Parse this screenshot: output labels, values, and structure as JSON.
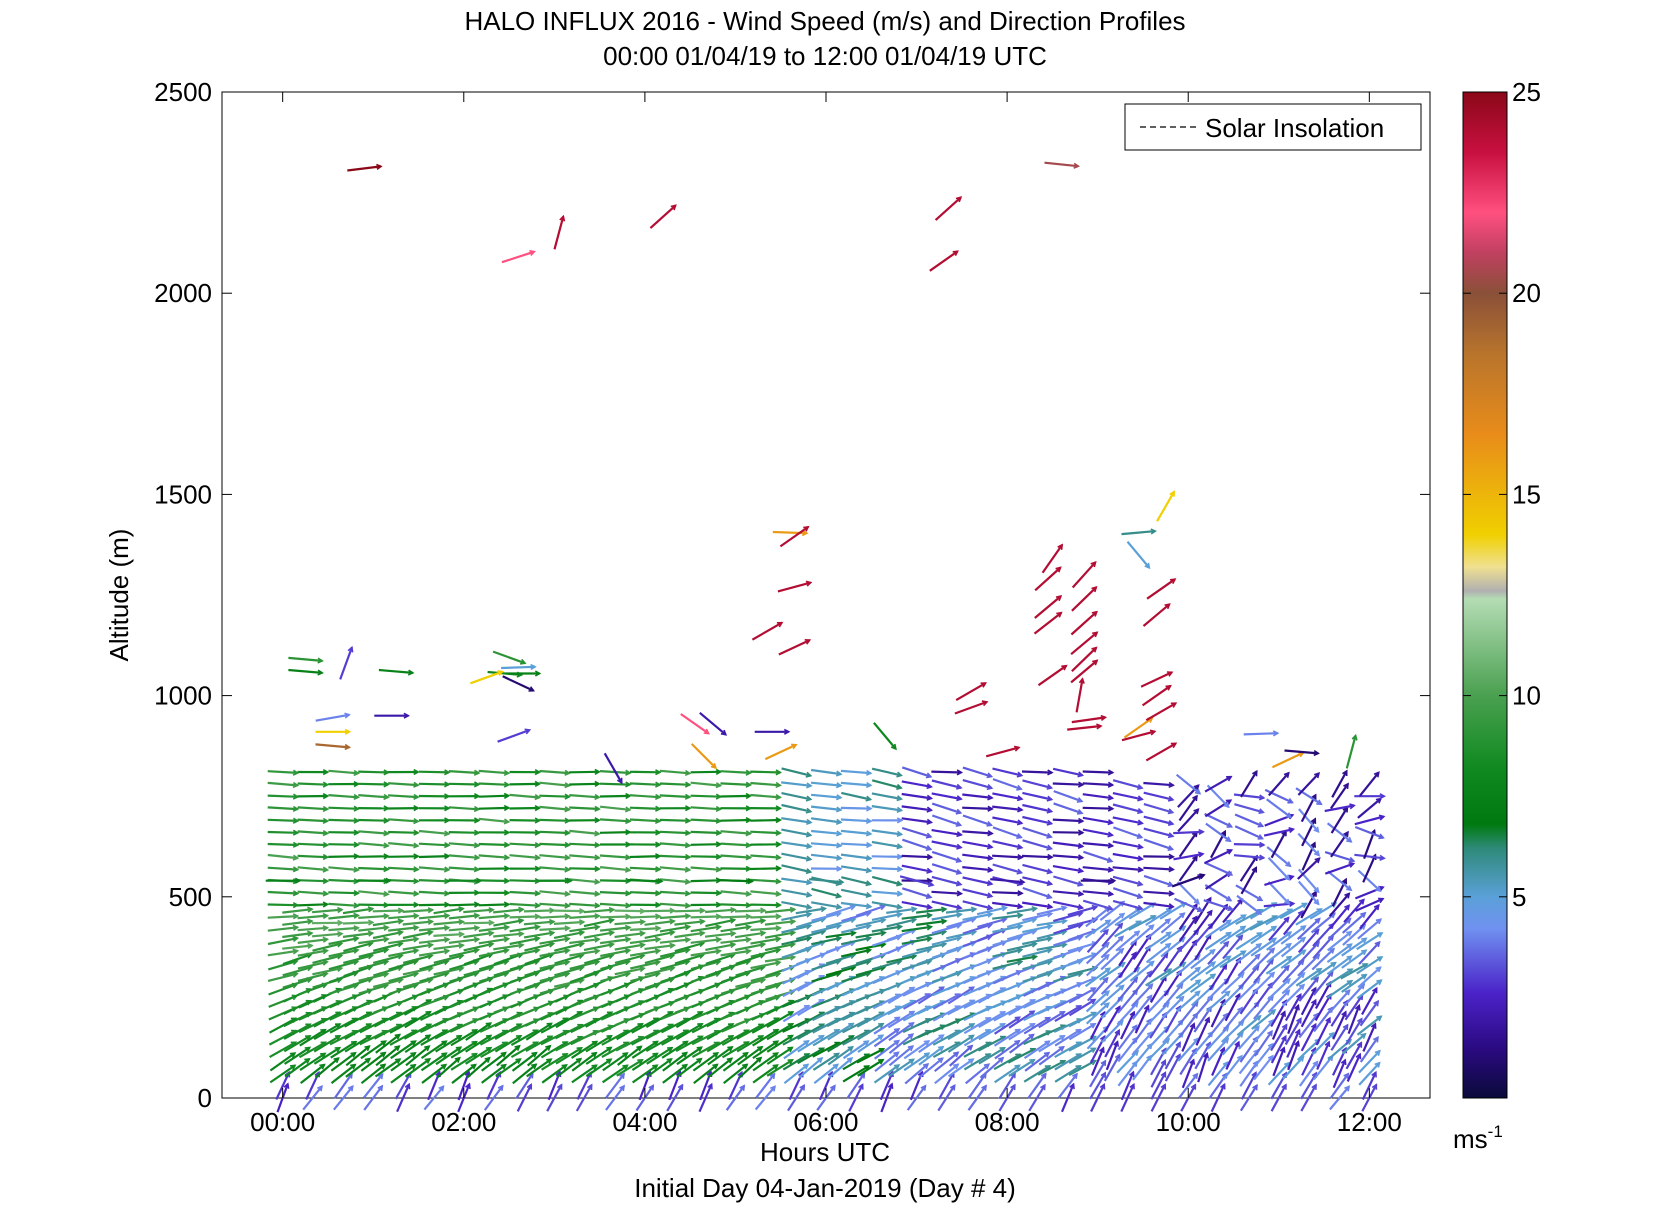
{
  "chart_data": {
    "type": "quiver",
    "title": "HALO INFLUX 2016 - Wind Speed (m/s) and Direction Profiles",
    "subtitle": "00:00 01/04/19 to 12:00 01/04/19  UTC",
    "xlabel": "Hours UTC",
    "xlabel2": "Initial Day 04-Jan-2019 (Day # 4)",
    "ylabel": "Altitude (m)",
    "xlim": [
      -0.67,
      12.67
    ],
    "ylim": [
      0,
      2500
    ],
    "x_ticks": [
      0,
      2,
      4,
      6,
      8,
      10,
      12
    ],
    "x_tick_labels": [
      "00:00",
      "02:00",
      "04:00",
      "06:00",
      "08:00",
      "10:00",
      "12:00"
    ],
    "y_ticks": [
      0,
      500,
      1000,
      1500,
      2000,
      2500
    ],
    "y_tick_labels": [
      "0",
      "500",
      "1000",
      "1500",
      "2000",
      "2500"
    ],
    "legend": {
      "entries": [
        "Solar Insolation"
      ],
      "placement": "top-right",
      "line_style": "dashed"
    },
    "colorbar": {
      "label": "ms",
      "label_exponent": "-1",
      "range": [
        0,
        25
      ],
      "ticks": [
        5,
        10,
        15,
        20,
        25
      ],
      "tick_labels": [
        "5",
        "10",
        "15",
        "20",
        "25"
      ],
      "stops": [
        {
          "v": 0,
          "color": "#0a0a3a"
        },
        {
          "v": 1.2,
          "color": "#2a0a80"
        },
        {
          "v": 2.6,
          "color": "#4a22c8"
        },
        {
          "v": 4.2,
          "color": "#7090f0"
        },
        {
          "v": 5.0,
          "color": "#5aa0d8"
        },
        {
          "v": 6.2,
          "color": "#2f8a7a"
        },
        {
          "v": 6.8,
          "color": "#007a10"
        },
        {
          "v": 8.2,
          "color": "#108a20"
        },
        {
          "v": 10.0,
          "color": "#4aa050"
        },
        {
          "v": 12.4,
          "color": "#b4dcb4"
        },
        {
          "v": 12.6,
          "color": "#b0b0b0"
        },
        {
          "v": 13.2,
          "color": "#f0e090"
        },
        {
          "v": 14.0,
          "color": "#f0d000"
        },
        {
          "v": 16.5,
          "color": "#e88c1a"
        },
        {
          "v": 18.5,
          "color": "#b8742c"
        },
        {
          "v": 20.0,
          "color": "#8a5038"
        },
        {
          "v": 21.0,
          "color": "#c04060"
        },
        {
          "v": 22.0,
          "color": "#ff5080"
        },
        {
          "v": 23.5,
          "color": "#c81040"
        },
        {
          "v": 25.0,
          "color": "#8a0818"
        }
      ]
    },
    "profiles": {
      "times_hours": [
        0.0,
        0.33,
        0.67,
        1.0,
        1.33,
        1.67,
        2.0,
        2.33,
        2.67,
        3.0,
        3.33,
        3.67,
        4.0,
        4.33,
        4.67,
        5.0,
        5.33,
        5.67,
        6.0,
        6.33,
        6.67,
        7.0,
        7.33,
        7.67,
        8.0,
        8.33,
        8.67,
        9.0,
        9.33,
        9.67,
        10.0,
        10.33,
        10.67,
        11.0,
        11.33,
        11.67,
        12.0
      ],
      "altitude_levels_m": [
        0,
        30,
        60,
        90,
        120,
        150,
        180,
        210,
        240,
        270,
        300,
        330,
        360,
        390,
        420,
        450,
        480,
        510,
        540,
        570,
        600,
        630,
        660,
        690,
        720,
        750,
        780,
        810
      ],
      "description_ignored": ""
    },
    "wind_barbs": [
      {
        "t": 0.0,
        "alt": 540,
        "speed": 7.5,
        "dir_deg": 270
      },
      {
        "t": 1.0,
        "alt": 540,
        "speed": 7.8,
        "dir_deg": 270
      },
      {
        "t": 2.0,
        "alt": 540,
        "speed": 8.0,
        "dir_deg": 270
      },
      {
        "t": 3.0,
        "alt": 540,
        "speed": 8.2,
        "dir_deg": 270
      },
      {
        "t": 4.0,
        "alt": 540,
        "speed": 7.6,
        "dir_deg": 272
      },
      {
        "t": 5.0,
        "alt": 540,
        "speed": 7.0,
        "dir_deg": 272
      },
      {
        "t": 6.0,
        "alt": 540,
        "speed": 6.0,
        "dir_deg": 275
      },
      {
        "t": 7.0,
        "alt": 540,
        "speed": 3.0,
        "dir_deg": 285
      },
      {
        "t": 8.0,
        "alt": 540,
        "speed": 2.0,
        "dir_deg": 275
      },
      {
        "t": 9.0,
        "alt": 540,
        "speed": 1.5,
        "dir_deg": 270
      },
      {
        "t": 10.0,
        "alt": 540,
        "speed": 1.0,
        "dir_deg": 250
      }
    ],
    "upper_arrows": [
      {
        "t": 0.9,
        "alt": 2310,
        "speed": 25,
        "dir_deg": 263
      },
      {
        "t": 2.6,
        "alt": 2090,
        "speed": 22,
        "dir_deg": 252
      },
      {
        "t": 3.05,
        "alt": 2150,
        "speed": 24,
        "dir_deg": 195
      },
      {
        "t": 4.2,
        "alt": 2190,
        "speed": 24,
        "dir_deg": 228
      },
      {
        "t": 7.35,
        "alt": 2210,
        "speed": 24,
        "dir_deg": 228
      },
      {
        "t": 7.3,
        "alt": 2080,
        "speed": 24,
        "dir_deg": 235
      },
      {
        "t": 8.6,
        "alt": 2320,
        "speed": 20.5,
        "dir_deg": 276
      },
      {
        "t": 5.6,
        "alt": 1405,
        "speed": 16,
        "dir_deg": 272
      },
      {
        "t": 5.65,
        "alt": 1395,
        "speed": 24,
        "dir_deg": 235
      },
      {
        "t": 5.65,
        "alt": 1270,
        "speed": 24,
        "dir_deg": 255
      },
      {
        "t": 5.35,
        "alt": 1160,
        "speed": 24,
        "dir_deg": 240
      },
      {
        "t": 5.65,
        "alt": 1120,
        "speed": 24,
        "dir_deg": 245
      },
      {
        "t": 9.45,
        "alt": 1405,
        "speed": 6,
        "dir_deg": 265
      },
      {
        "t": 9.45,
        "alt": 1350,
        "speed": 5,
        "dir_deg": 320
      },
      {
        "t": 9.75,
        "alt": 1470,
        "speed": 14,
        "dir_deg": 210
      },
      {
        "t": 9.7,
        "alt": 1265,
        "speed": 24,
        "dir_deg": 235
      },
      {
        "t": 9.65,
        "alt": 1200,
        "speed": 24,
        "dir_deg": 230
      },
      {
        "t": 9.65,
        "alt": 1040,
        "speed": 24,
        "dir_deg": 245
      },
      {
        "t": 9.65,
        "alt": 1000,
        "speed": 24,
        "dir_deg": 235
      },
      {
        "t": 9.45,
        "alt": 920,
        "speed": 16,
        "dir_deg": 235
      },
      {
        "t": 9.45,
        "alt": 900,
        "speed": 24,
        "dir_deg": 255
      },
      {
        "t": 9.7,
        "alt": 960,
        "speed": 24,
        "dir_deg": 240
      },
      {
        "t": 9.7,
        "alt": 860,
        "speed": 24,
        "dir_deg": 240
      },
      {
        "t": 7.6,
        "alt": 1010,
        "speed": 24,
        "dir_deg": 240
      },
      {
        "t": 7.6,
        "alt": 970,
        "speed": 24,
        "dir_deg": 250
      },
      {
        "t": 7.95,
        "alt": 860,
        "speed": 24,
        "dir_deg": 255
      },
      {
        "t": 8.5,
        "alt": 1340,
        "speed": 24,
        "dir_deg": 215
      },
      {
        "t": 8.45,
        "alt": 1290,
        "speed": 24,
        "dir_deg": 228
      },
      {
        "t": 8.85,
        "alt": 1300,
        "speed": 24,
        "dir_deg": 222
      },
      {
        "t": 8.45,
        "alt": 1220,
        "speed": 24,
        "dir_deg": 230
      },
      {
        "t": 8.85,
        "alt": 1240,
        "speed": 24,
        "dir_deg": 226
      },
      {
        "t": 8.45,
        "alt": 1180,
        "speed": 24,
        "dir_deg": 232
      },
      {
        "t": 8.85,
        "alt": 1180,
        "speed": 24,
        "dir_deg": 228
      },
      {
        "t": 8.85,
        "alt": 1130,
        "speed": 24,
        "dir_deg": 230
      },
      {
        "t": 8.85,
        "alt": 1090,
        "speed": 24,
        "dir_deg": 226
      },
      {
        "t": 8.85,
        "alt": 1060,
        "speed": 24,
        "dir_deg": 230
      },
      {
        "t": 8.5,
        "alt": 1050,
        "speed": 24,
        "dir_deg": 235
      },
      {
        "t": 8.8,
        "alt": 1000,
        "speed": 24,
        "dir_deg": 190
      },
      {
        "t": 8.9,
        "alt": 940,
        "speed": 24,
        "dir_deg": 262
      },
      {
        "t": 8.85,
        "alt": 920,
        "speed": 24,
        "dir_deg": 264
      },
      {
        "t": 0.25,
        "alt": 1090,
        "speed": 9,
        "dir_deg": 275
      },
      {
        "t": 0.25,
        "alt": 1060,
        "speed": 7.5,
        "dir_deg": 275
      },
      {
        "t": 0.7,
        "alt": 1080,
        "speed": 3,
        "dir_deg": 200
      },
      {
        "t": 1.25,
        "alt": 1060,
        "speed": 7.5,
        "dir_deg": 275
      },
      {
        "t": 2.5,
        "alt": 1095,
        "speed": 9,
        "dir_deg": 290
      },
      {
        "t": 2.6,
        "alt": 1070,
        "speed": 5,
        "dir_deg": 268
      },
      {
        "t": 2.45,
        "alt": 1055,
        "speed": 8,
        "dir_deg": 275
      },
      {
        "t": 2.65,
        "alt": 1055,
        "speed": 7.5,
        "dir_deg": 270
      },
      {
        "t": 2.25,
        "alt": 1045,
        "speed": 14,
        "dir_deg": 250
      },
      {
        "t": 2.6,
        "alt": 1030,
        "speed": 1,
        "dir_deg": 295
      },
      {
        "t": 0.55,
        "alt": 945,
        "speed": 4,
        "dir_deg": 260
      },
      {
        "t": 0.55,
        "alt": 910,
        "speed": 14,
        "dir_deg": 270
      },
      {
        "t": 0.55,
        "alt": 875,
        "speed": 19,
        "dir_deg": 275
      },
      {
        "t": 1.2,
        "alt": 950,
        "speed": 2,
        "dir_deg": 270
      },
      {
        "t": 2.55,
        "alt": 900,
        "speed": 3,
        "dir_deg": 250
      },
      {
        "t": 4.55,
        "alt": 930,
        "speed": 22,
        "dir_deg": 305
      },
      {
        "t": 4.65,
        "alt": 850,
        "speed": 16,
        "dir_deg": 315
      },
      {
        "t": 5.5,
        "alt": 860,
        "speed": 16,
        "dir_deg": 245
      },
      {
        "t": 5.4,
        "alt": 910,
        "speed": 2,
        "dir_deg": 270
      },
      {
        "t": 4.75,
        "alt": 930,
        "speed": 2,
        "dir_deg": 310
      },
      {
        "t": 3.65,
        "alt": 820,
        "speed": 2,
        "dir_deg": 330
      },
      {
        "t": 10.8,
        "alt": 905,
        "speed": 4,
        "dir_deg": 268
      },
      {
        "t": 11.1,
        "alt": 840,
        "speed": 16,
        "dir_deg": 245
      },
      {
        "t": 11.25,
        "alt": 860,
        "speed": 1,
        "dir_deg": 275
      },
      {
        "t": 6.65,
        "alt": 900,
        "speed": 8,
        "dir_deg": 320
      },
      {
        "t": 11.8,
        "alt": 860,
        "speed": 9,
        "dir_deg": 195
      }
    ]
  }
}
